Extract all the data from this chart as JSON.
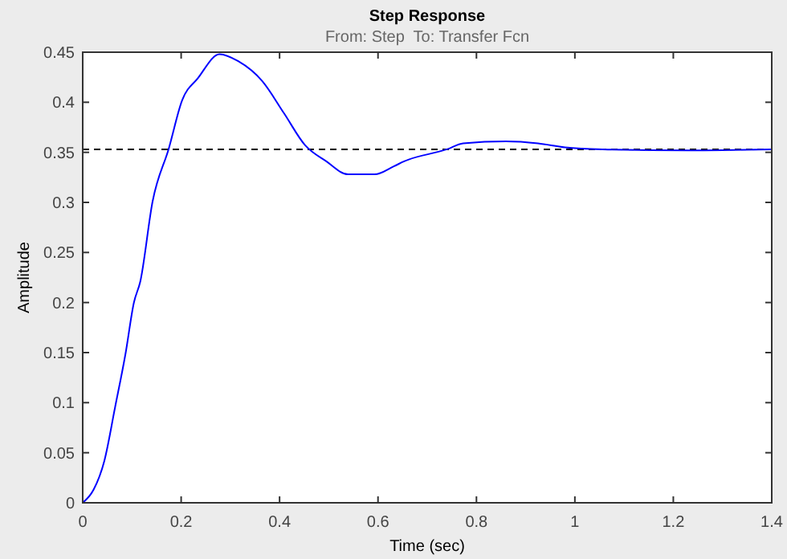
{
  "chart_data": {
    "type": "line",
    "title": "Step Response",
    "subtitle": "From: Step  To: Transfer Fcn",
    "xlabel": "Time (sec)",
    "ylabel": "Amplitude",
    "xlim": [
      0,
      1.4
    ],
    "xticks": [
      0,
      0.2,
      0.4,
      0.6,
      0.8,
      1,
      1.2,
      1.4
    ],
    "ylim": [
      0,
      0.45
    ],
    "yticks": [
      0,
      0.05,
      0.1,
      0.15,
      0.2,
      0.25,
      0.3,
      0.35,
      0.4,
      0.45
    ],
    "grid": false,
    "marker": "none",
    "line_style": "solid",
    "series": [
      {
        "color": "#0000ff",
        "x": [
          0,
          0.022,
          0.044,
          0.066,
          0.087,
          0.104,
          0.117,
          0.142,
          0.175,
          0.202,
          0.234,
          0.278,
          0.316,
          0.365,
          0.409,
          0.452,
          0.495,
          0.539,
          0.593,
          0.632,
          0.653,
          0.74,
          0.773,
          0.86,
          0.925,
          0.98,
          1.056,
          1.23,
          1.4
        ],
        "values": [
          0,
          0.013,
          0.042,
          0.096,
          0.149,
          0.2,
          0.221,
          0.301,
          0.354,
          0.402,
          0.424,
          0.448,
          0.441,
          0.421,
          0.389,
          0.357,
          0.341,
          0.328,
          0.328,
          0.336,
          0.341,
          0.353,
          0.359,
          0.361,
          0.359,
          0.355,
          0.353,
          0.352,
          0.353
        ]
      }
    ],
    "ref_lines": [
      {
        "axis": "y",
        "value": 0.353,
        "color": "#000000",
        "line_style": "dashed"
      }
    ]
  }
}
